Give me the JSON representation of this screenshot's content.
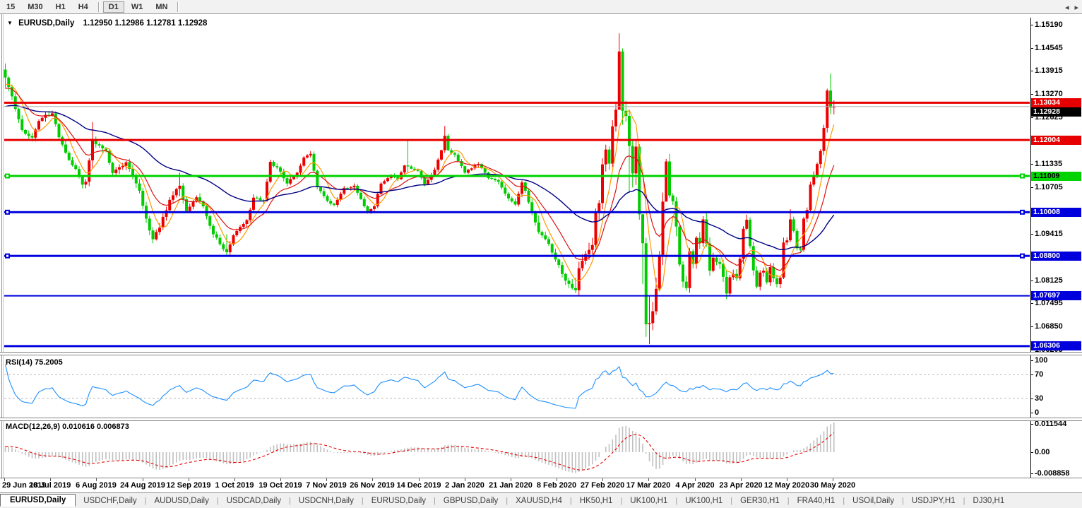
{
  "toolbar": {
    "timeframes": [
      "15",
      "M30",
      "H1",
      "H4",
      "D1",
      "W1",
      "MN"
    ],
    "active": "D1"
  },
  "chart": {
    "symbol_title": "EURUSD,Daily",
    "ohlc_values": "1.12950 1.12986 1.12781 1.12928"
  },
  "price_axis": {
    "ticks": [
      {
        "label": "1.15190",
        "price": 1.1519
      },
      {
        "label": "1.14545",
        "price": 1.14545
      },
      {
        "label": "1.13915",
        "price": 1.13915
      },
      {
        "label": "1.13270",
        "price": 1.1327
      },
      {
        "label": "1.12625",
        "price": 1.12625
      },
      {
        "label": "1.11335",
        "price": 1.11335
      },
      {
        "label": "1.10705",
        "price": 1.10705
      },
      {
        "label": "1.09415",
        "price": 1.09415
      },
      {
        "label": "1.08125",
        "price": 1.08125
      },
      {
        "label": "1.07495",
        "price": 1.07495
      },
      {
        "label": "1.06850",
        "price": 1.0685
      },
      {
        "label": "1.06205",
        "price": 1.06205
      }
    ]
  },
  "rsi": {
    "label": "RSI(14) 75.2005",
    "period": 14,
    "current": 75.2005,
    "levels": [
      100,
      70,
      30,
      0
    ],
    "level_labels": [
      "100",
      "70",
      "30",
      "0"
    ],
    "line_color": "#1e90ff"
  },
  "macd": {
    "label": "MACD(12,26,9) 0.010616 0.006873",
    "params": [
      12,
      26,
      9
    ],
    "current_macd": 0.010616,
    "current_signal": 0.006873,
    "axis_labels": [
      "0.011544",
      "0.00",
      "-0.008858"
    ],
    "hist_color": "#c0c0c0",
    "signal_color": "#e60000"
  },
  "date_axis": {
    "labels": [
      "29 Jun 2019",
      "18 Jul 2019",
      "6 Aug 2019",
      "24 Aug 2019",
      "12 Sep 2019",
      "1 Oct 2019",
      "19 Oct 2019",
      "7 Nov 2019",
      "26 Nov 2019",
      "14 Dec 2019",
      "2 Jan 2020",
      "21 Jan 2020",
      "8 Feb 2020",
      "27 Feb 2020",
      "17 Mar 2020",
      "4 Apr 2020",
      "23 Apr 2020",
      "12 May 2020",
      "30 May 2020"
    ],
    "bars_per_label": 13.72
  },
  "tabs": {
    "items": [
      "EURUSD,Daily",
      "USDCHF,Daily",
      "AUDUSD,Daily",
      "USDCAD,Daily",
      "USDCNH,Daily",
      "EURUSD,Daily",
      "GBPUSD,Daily",
      "XAUUSD,H4",
      "HK50,H1",
      "UK100,H1",
      "UK100,H1",
      "GER30,H1",
      "FRA40,H1",
      "USOil,Daily",
      "USDJPY,H1",
      "DJ30,H1"
    ],
    "active_index": 0,
    "scroll_left": "◂",
    "scroll_right": "▸"
  },
  "chart_data": {
    "type": "candlestick",
    "symbol": "EURUSD",
    "timeframe": "Daily",
    "bars": 248,
    "seed": 7,
    "first_open": 1.1395,
    "ylim": [
      1.06167,
      1.15385
    ],
    "up_color": "#ee0000",
    "down_color": "#00cc00",
    "current_price": {
      "label": "1.12928",
      "price": 1.12928,
      "line_color": "#b0b0b0",
      "box_bg": "#000000",
      "box_text": "#ffffff"
    },
    "close_anchors": [
      [
        0,
        1.1373
      ],
      [
        2,
        1.1321
      ],
      [
        3,
        1.1286
      ],
      [
        5,
        1.1228
      ],
      [
        8,
        1.1207
      ],
      [
        10,
        1.1253
      ],
      [
        12,
        1.127
      ],
      [
        14,
        1.1274
      ],
      [
        16,
        1.1208
      ],
      [
        19,
        1.1145
      ],
      [
        21,
        1.112
      ],
      [
        23,
        1.1077
      ],
      [
        24,
        1.1085
      ],
      [
        26,
        1.12
      ],
      [
        28,
        1.1185
      ],
      [
        30,
        1.117
      ],
      [
        32,
        1.1109
      ],
      [
        34,
        1.1125
      ],
      [
        36,
        1.1139
      ],
      [
        38,
        1.1101
      ],
      [
        40,
        1.106
      ],
      [
        42,
        1.0983
      ],
      [
        44,
        1.0926
      ],
      [
        46,
        1.0958
      ],
      [
        49,
        1.1035
      ],
      [
        52,
        1.1074
      ],
      [
        54,
        1.1004
      ],
      [
        57,
        1.1042
      ],
      [
        59,
        1.1017
      ],
      [
        62,
        1.094
      ],
      [
        65,
        1.0899
      ],
      [
        66,
        1.089
      ],
      [
        68,
        1.0937
      ],
      [
        70,
        1.096
      ],
      [
        72,
        1.0979
      ],
      [
        74,
        1.1041
      ],
      [
        77,
        1.1032
      ],
      [
        79,
        1.114
      ],
      [
        82,
        1.1113
      ],
      [
        84,
        1.108
      ],
      [
        87,
        1.111
      ],
      [
        89,
        1.1152
      ],
      [
        91,
        1.1162
      ],
      [
        93,
        1.107
      ],
      [
        96,
        1.1032
      ],
      [
        98,
        1.1021
      ],
      [
        101,
        1.1068
      ],
      [
        104,
        1.1074
      ],
      [
        107,
        1.1017
      ],
      [
        108,
        1.1
      ],
      [
        110,
        1.1017
      ],
      [
        112,
        1.108
      ],
      [
        115,
        1.1103
      ],
      [
        117,
        1.1092
      ],
      [
        119,
        1.113
      ],
      [
        121,
        1.1121
      ],
      [
        123,
        1.1115
      ],
      [
        125,
        1.1078
      ],
      [
        128,
        1.1118
      ],
      [
        130,
        1.1172
      ],
      [
        131,
        1.1212
      ],
      [
        132,
        1.1172
      ],
      [
        134,
        1.116
      ],
      [
        137,
        1.111
      ],
      [
        139,
        1.1122
      ],
      [
        141,
        1.1134
      ],
      [
        144,
        1.1095
      ],
      [
        147,
        1.1085
      ],
      [
        149,
        1.1052
      ],
      [
        152,
        1.1022
      ],
      [
        154,
        1.1083
      ],
      [
        155,
        1.106
      ],
      [
        157,
        1.1001
      ],
      [
        159,
        1.0946
      ],
      [
        162,
        1.0913
      ],
      [
        164,
        1.087
      ],
      [
        166,
        1.083
      ],
      [
        169,
        1.0791
      ],
      [
        170,
        1.0785
      ],
      [
        171,
        1.0846
      ],
      [
        173,
        1.0885
      ],
      [
        175,
        1.091
      ],
      [
        176,
        1.0999
      ],
      [
        177,
        1.1026
      ],
      [
        178,
        1.1133
      ],
      [
        179,
        1.1174
      ],
      [
        180,
        1.1135
      ],
      [
        181,
        1.1238
      ],
      [
        182,
        1.1284
      ],
      [
        183,
        1.1445
      ],
      [
        184,
        1.1281
      ],
      [
        185,
        1.1267
      ],
      [
        186,
        1.1184
      ],
      [
        187,
        1.1108
      ],
      [
        188,
        1.1182
      ],
      [
        189,
        1.0995
      ],
      [
        190,
        1.0915
      ],
      [
        191,
        1.0691
      ],
      [
        192,
        1.0694
      ],
      [
        193,
        1.0727
      ],
      [
        194,
        1.0789
      ],
      [
        195,
        1.0883
      ],
      [
        196,
        1.103
      ],
      [
        197,
        1.1141
      ],
      [
        198,
        1.1047
      ],
      [
        199,
        1.1031
      ],
      [
        200,
        1.0961
      ],
      [
        201,
        1.0856
      ],
      [
        202,
        1.0809
      ],
      [
        203,
        1.0791
      ],
      [
        204,
        1.0893
      ],
      [
        205,
        1.0858
      ],
      [
        206,
        1.093
      ],
      [
        207,
        1.0915
      ],
      [
        208,
        1.0981
      ],
      [
        209,
        1.0914
      ],
      [
        210,
        1.0839
      ],
      [
        211,
        1.0875
      ],
      [
        212,
        1.0863
      ],
      [
        213,
        1.0858
      ],
      [
        214,
        1.0822
      ],
      [
        215,
        1.0776
      ],
      [
        216,
        1.0821
      ],
      [
        217,
        1.083
      ],
      [
        218,
        1.0818
      ],
      [
        219,
        1.0872
      ],
      [
        220,
        1.0955
      ],
      [
        221,
        1.098
      ],
      [
        222,
        1.0907
      ],
      [
        223,
        1.084
      ],
      [
        224,
        1.0795
      ],
      [
        225,
        1.0834
      ],
      [
        226,
        1.0839
      ],
      [
        227,
        1.0807
      ],
      [
        228,
        1.0849
      ],
      [
        229,
        1.0818
      ],
      [
        230,
        1.0802
      ],
      [
        231,
        1.082
      ],
      [
        232,
        1.0917
      ],
      [
        233,
        1.0923
      ],
      [
        234,
        1.0981
      ],
      [
        235,
        1.0949
      ],
      [
        236,
        1.0901
      ],
      [
        237,
        1.0897
      ],
      [
        238,
        1.0983
      ],
      [
        239,
        1.1007
      ],
      [
        240,
        1.1077
      ],
      [
        241,
        1.1101
      ],
      [
        242,
        1.1134
      ],
      [
        243,
        1.117
      ],
      [
        244,
        1.1234
      ],
      [
        245,
        1.1337
      ],
      [
        246,
        1.129
      ],
      [
        247,
        1.12928
      ]
    ],
    "wick_overrides": {
      "0": [
        1.1412,
        1.1344
      ],
      "26": [
        1.125,
        1.1123
      ],
      "52": [
        1.111,
        1.1045
      ],
      "66": [
        1.094,
        1.0879
      ],
      "120": [
        1.1199,
        1.111
      ],
      "131": [
        1.1239,
        1.1165
      ],
      "159": [
        1.0992,
        1.0941
      ],
      "170": [
        1.082,
        1.0777
      ],
      "183": [
        1.1495,
        1.129
      ],
      "186": [
        1.1285,
        1.1054
      ],
      "189": [
        1.1189,
        1.098
      ],
      "190": [
        1.096,
        1.0802
      ],
      "191": [
        1.093,
        1.0656
      ],
      "192": [
        1.077,
        1.0636
      ],
      "197": [
        1.1148,
        1.1035
      ],
      "208": [
        1.099,
        1.0905
      ],
      "234": [
        1.1009,
        1.0918
      ],
      "246": [
        1.1384,
        1.1272
      ]
    },
    "vol_anchors": [
      [
        0,
        0.0017
      ],
      [
        40,
        0.0019
      ],
      [
        90,
        0.0012
      ],
      [
        130,
        0.001
      ],
      [
        150,
        0.0013
      ],
      [
        168,
        0.0022
      ],
      [
        178,
        0.0036
      ],
      [
        183,
        0.0055
      ],
      [
        190,
        0.006
      ],
      [
        196,
        0.0045
      ],
      [
        205,
        0.003
      ],
      [
        215,
        0.0024
      ],
      [
        228,
        0.0018
      ],
      [
        238,
        0.0022
      ],
      [
        247,
        0.0028
      ]
    ],
    "moving_averages": [
      {
        "name": "ma-fast",
        "type": "sma",
        "period": 6,
        "color": "#ff9900",
        "width": 1.2
      },
      {
        "name": "ma-mid",
        "type": "ema",
        "period": 14,
        "color": "#dd1111",
        "width": 1.2
      },
      {
        "name": "ma-slow",
        "type": "ema",
        "period": 50,
        "color": "#000085",
        "width": 1.4
      }
    ],
    "hlines": [
      {
        "label": "1.13034",
        "price": 1.13034,
        "color": "#e60000",
        "width": 3,
        "handles": false,
        "text": "#ffffff"
      },
      {
        "label": "1.12004",
        "price": 1.12004,
        "color": "#e60000",
        "width": 3,
        "handles": false,
        "text": "#ffffff"
      },
      {
        "label": "1.11009",
        "price": 1.11009,
        "color": "#00d300",
        "width": 3,
        "handles": true,
        "text": "#000000"
      },
      {
        "label": "1.10008",
        "price": 1.10008,
        "color": "#0000dc",
        "width": 3,
        "handles": true,
        "text": "#ffffff"
      },
      {
        "label": "1.08800",
        "price": 1.088,
        "color": "#0000dc",
        "width": 3,
        "handles": true,
        "text": "#ffffff"
      },
      {
        "label": "1.07697",
        "price": 1.07697,
        "color": "#0000dc",
        "width": 2,
        "handles": false,
        "text": "#ffffff"
      },
      {
        "label": "1.06306",
        "price": 1.06306,
        "color": "#0000dc",
        "width": 3,
        "handles": false,
        "text": "#ffffff"
      }
    ]
  }
}
